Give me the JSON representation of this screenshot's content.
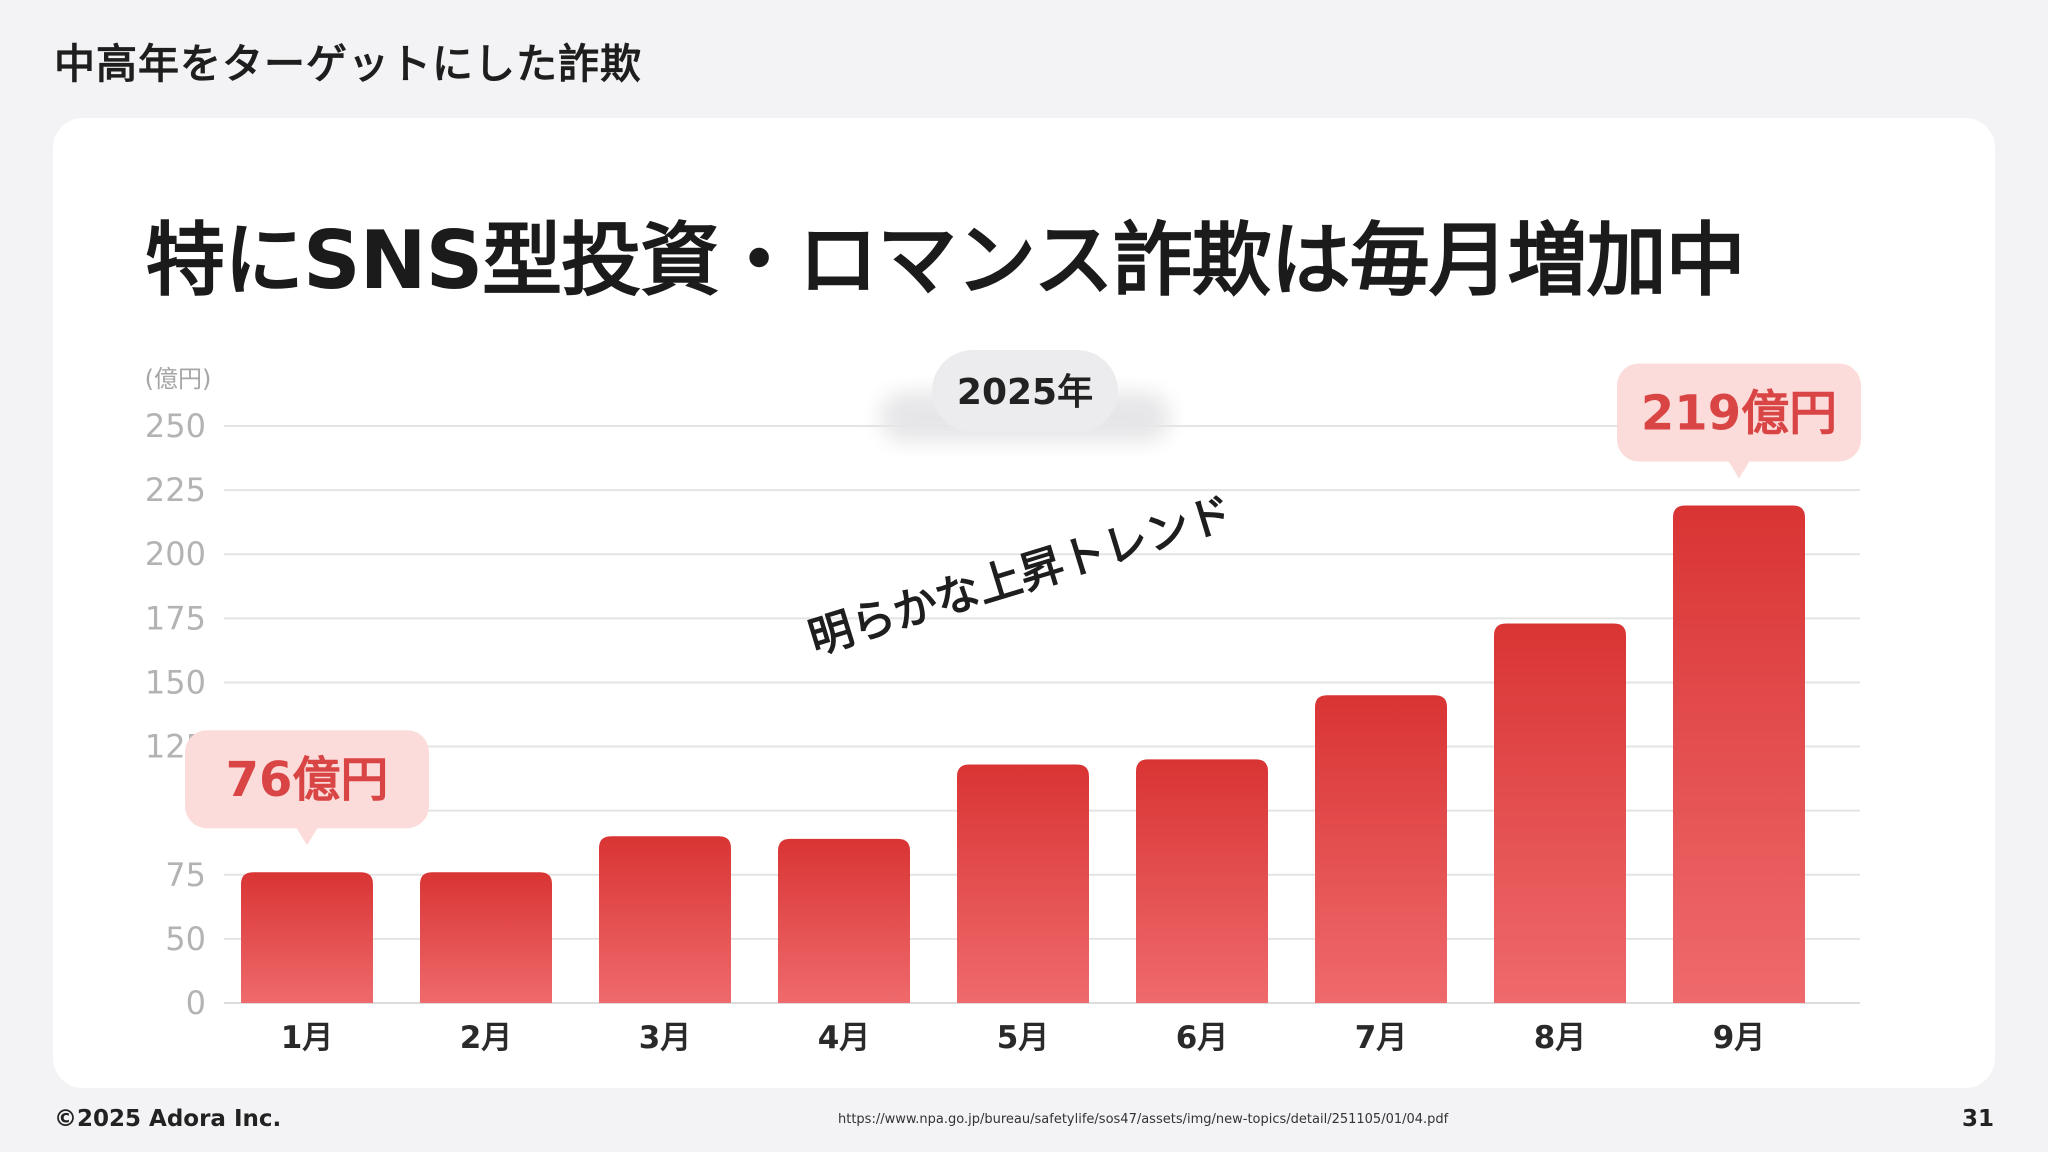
{
  "slide": {
    "section_title": "中高年をターゲットにした詐欺",
    "headline": "特にSNS型投資・ロマンス詐欺は毎月増加中",
    "copyright": "©2025 Adora Inc.",
    "source": "https://www.npa.go.jp/bureau/safetylife/sos47/assets/img/new-topics/detail/251105/01/04.pdf",
    "page_number": "31"
  },
  "colors": {
    "bar_top": "#d93434",
    "bar_bottom": "#ef6a6c",
    "callout_bg": "#fbdcdb",
    "callout_text": "#d94545",
    "year_badge_bg": "#ececee"
  },
  "chart_data": {
    "type": "bar",
    "unit_label": "(億円)",
    "year_badge": "2025年",
    "categories": [
      "1月",
      "2月",
      "3月",
      "4月",
      "5月",
      "6月",
      "7月",
      "8月",
      "9月"
    ],
    "values": [
      76,
      76,
      90,
      89,
      118,
      120,
      145,
      173,
      219
    ],
    "y_ticks": [
      "250",
      "225",
      "200",
      "175",
      "150",
      "125",
      "75",
      "50",
      "0"
    ],
    "annotation": "明らかな上昇トレンド",
    "callouts": [
      {
        "category_index": 0,
        "text": "76億円"
      },
      {
        "category_index": 8,
        "text": "219億円"
      }
    ],
    "grid": true
  }
}
